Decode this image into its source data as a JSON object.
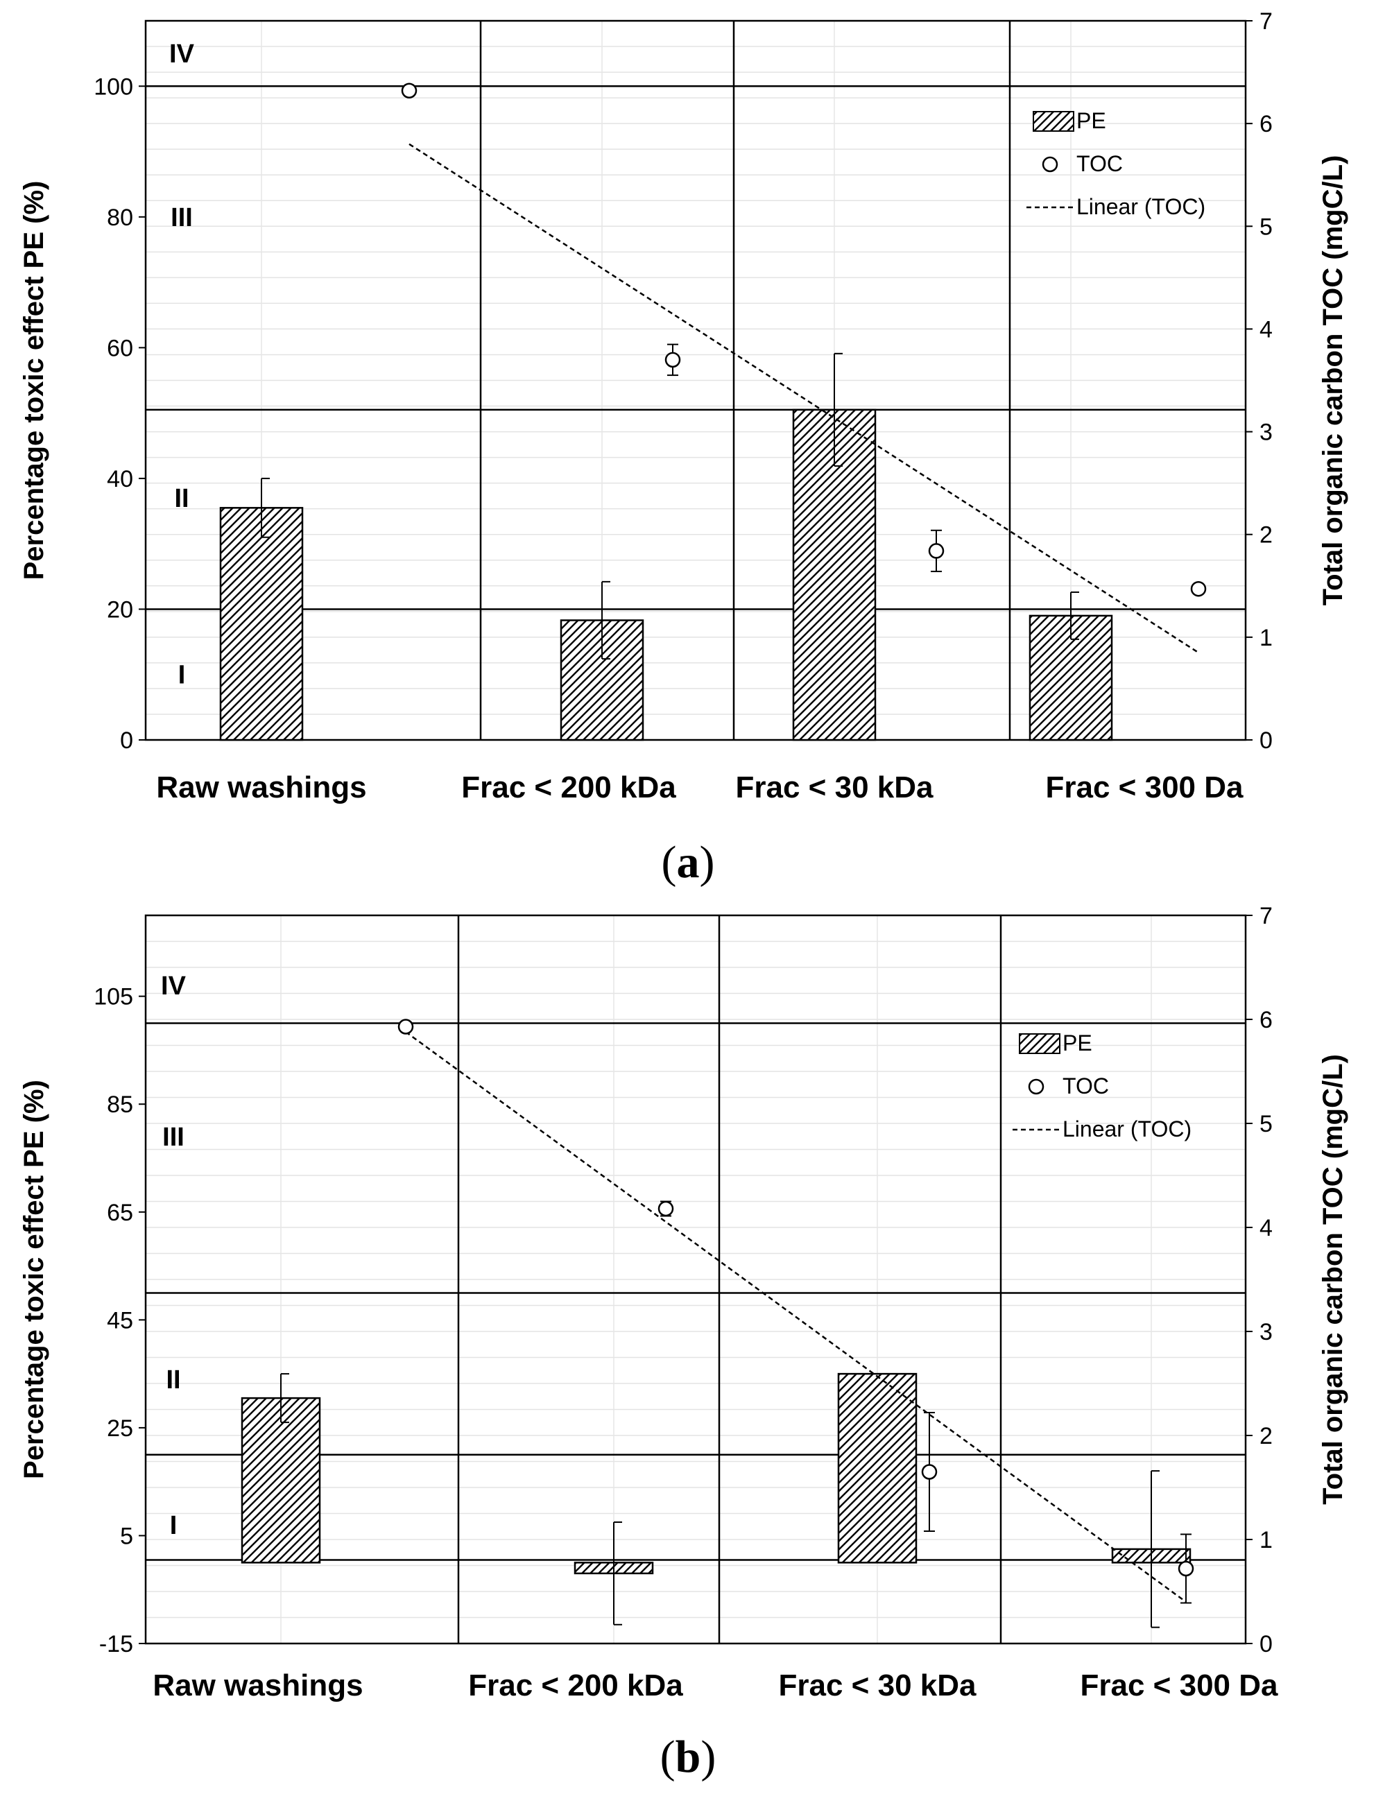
{
  "chart_data": [
    {
      "type": "bar",
      "panel_label": "a",
      "categories": [
        "Raw washings",
        "Frac < 200 kDa",
        "Frac < 30 kDa",
        "Frac < 300 Da"
      ],
      "series": [
        {
          "name": "PE",
          "axis": "left",
          "values": [
            35.5,
            18.3,
            50.5,
            19.0
          ],
          "err": [
            4.5,
            5.9,
            8.6,
            3.6
          ]
        }
      ],
      "toc": {
        "name": "TOC",
        "axis": "right",
        "values": [
          6.32,
          3.7,
          1.84,
          1.47
        ],
        "err": [
          0.0,
          0.15,
          0.2,
          0.0
        ]
      },
      "trendline": {
        "name": "Linear (TOC)",
        "start": 5.8,
        "end": 0.85
      },
      "zones": [
        {
          "label": "I",
          "value": 10
        },
        {
          "label": "II",
          "value": 37
        },
        {
          "label": "III",
          "value": 80
        },
        {
          "label": "IV",
          "value": 105
        }
      ],
      "zone_lines": [
        20,
        50.5,
        100
      ],
      "ylabel": "Percentage toxic effect PE (%)",
      "y2label": "Total organic carbon TOC (mgC/L)",
      "ylim": [
        0,
        110
      ],
      "yticks": [
        0,
        20,
        40,
        60,
        80,
        100
      ],
      "y2lim": [
        0,
        7
      ],
      "y2ticks": [
        0,
        1,
        2,
        3,
        4,
        5,
        6,
        7
      ],
      "legend": [
        "PE",
        "TOC",
        "Linear (TOC)"
      ]
    },
    {
      "type": "bar",
      "panel_label": "b",
      "categories": [
        "Raw washings",
        "Frac < 200 kDa",
        "Frac < 30 kDa",
        "Frac < 300 Da"
      ],
      "series": [
        {
          "name": "PE",
          "axis": "left",
          "values": [
            30.5,
            -2.0,
            35.0,
            2.5
          ],
          "err": [
            4.5,
            9.5,
            0.0,
            14.5
          ]
        }
      ],
      "toc": {
        "name": "TOC",
        "axis": "right",
        "values": [
          5.93,
          4.18,
          1.65,
          0.72
        ],
        "err": [
          0.0,
          0.07,
          0.57,
          0.33
        ]
      },
      "trendline": {
        "name": "Linear (TOC)",
        "start": 5.88,
        "end": 0.4
      },
      "zones": [
        {
          "label": "I",
          "value": 7
        },
        {
          "label": "II",
          "value": 34
        },
        {
          "label": "III",
          "value": 79
        },
        {
          "label": "IV",
          "value": 107
        }
      ],
      "zone_lines": [
        0.5,
        20,
        50,
        100
      ],
      "ylabel": "Percentage toxic effect PE (%)",
      "y2label": "Total organic carbon TOC (mgC/L)",
      "ylim": [
        -15,
        120
      ],
      "yticks": [
        -15,
        5,
        25,
        45,
        65,
        85,
        105
      ],
      "y2lim": [
        0,
        7
      ],
      "y2ticks": [
        0,
        1,
        2,
        3,
        4,
        5,
        6,
        7
      ],
      "legend": [
        "PE",
        "TOC",
        "Linear (TOC)"
      ]
    }
  ]
}
